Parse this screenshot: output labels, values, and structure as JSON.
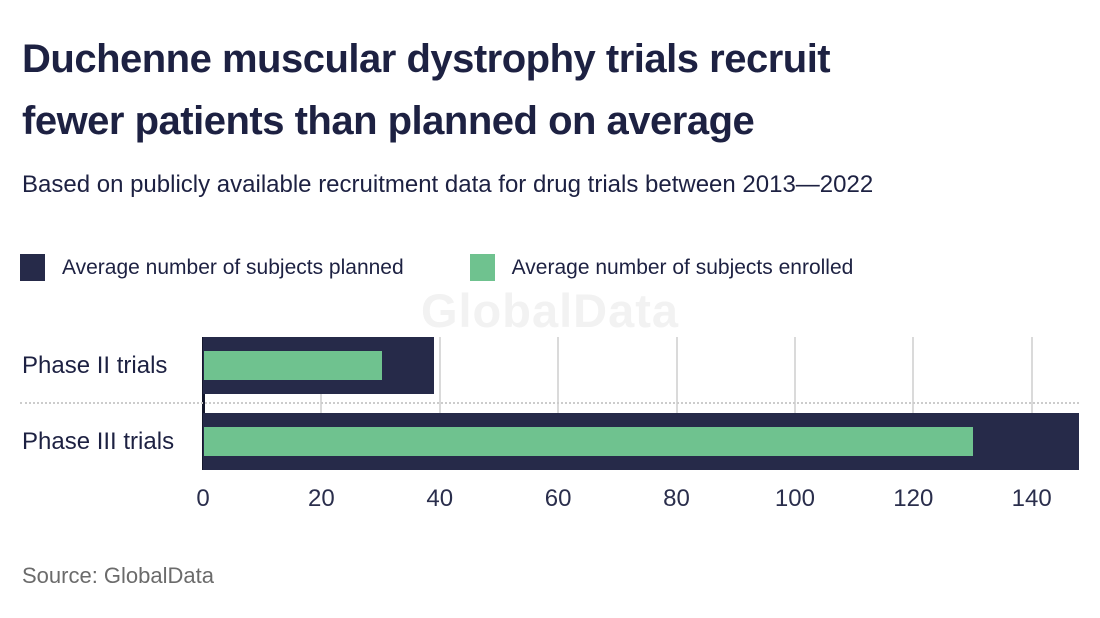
{
  "header": {
    "title_line1": "Duchenne muscular dystrophy trials recruit",
    "title_line2": "fewer patients than planned on average",
    "subtitle": "Based on publicly available recruitment data for drug trials between 2013—2022"
  },
  "legend": [
    {
      "label": "Average number of subjects planned",
      "color": "#262a49"
    },
    {
      "label": "Average number of subjects enrolled",
      "color": "#6fc28f"
    }
  ],
  "watermark": "GlobalData",
  "source": "Source: GlobalData",
  "colors": {
    "planned": "#262a49",
    "enrolled": "#6fc28f",
    "gridline": "#dadada",
    "axis": "#14172c",
    "text": "#1d2142"
  },
  "chart_data": {
    "type": "bar",
    "orientation": "horizontal",
    "title": "Duchenne muscular dystrophy trials recruit fewer patients than planned on average",
    "subtitle": "Based on publicly available recruitment data for drug trials between 2013—2022",
    "categories": [
      "Phase II trials",
      "Phase III trials"
    ],
    "series": [
      {
        "name": "Average number of subjects planned",
        "color": "#262a49",
        "values": [
          39,
          148
        ]
      },
      {
        "name": "Average number of subjects enrolled",
        "color": "#6fc28f",
        "values": [
          30,
          130
        ]
      }
    ],
    "xlabel": "",
    "ylabel": "",
    "xlim": [
      0,
      148
    ],
    "xticks": [
      0,
      20,
      40,
      60,
      80,
      100,
      120,
      140
    ],
    "grid": true,
    "legend_position": "top",
    "source": "Source: GlobalData"
  }
}
